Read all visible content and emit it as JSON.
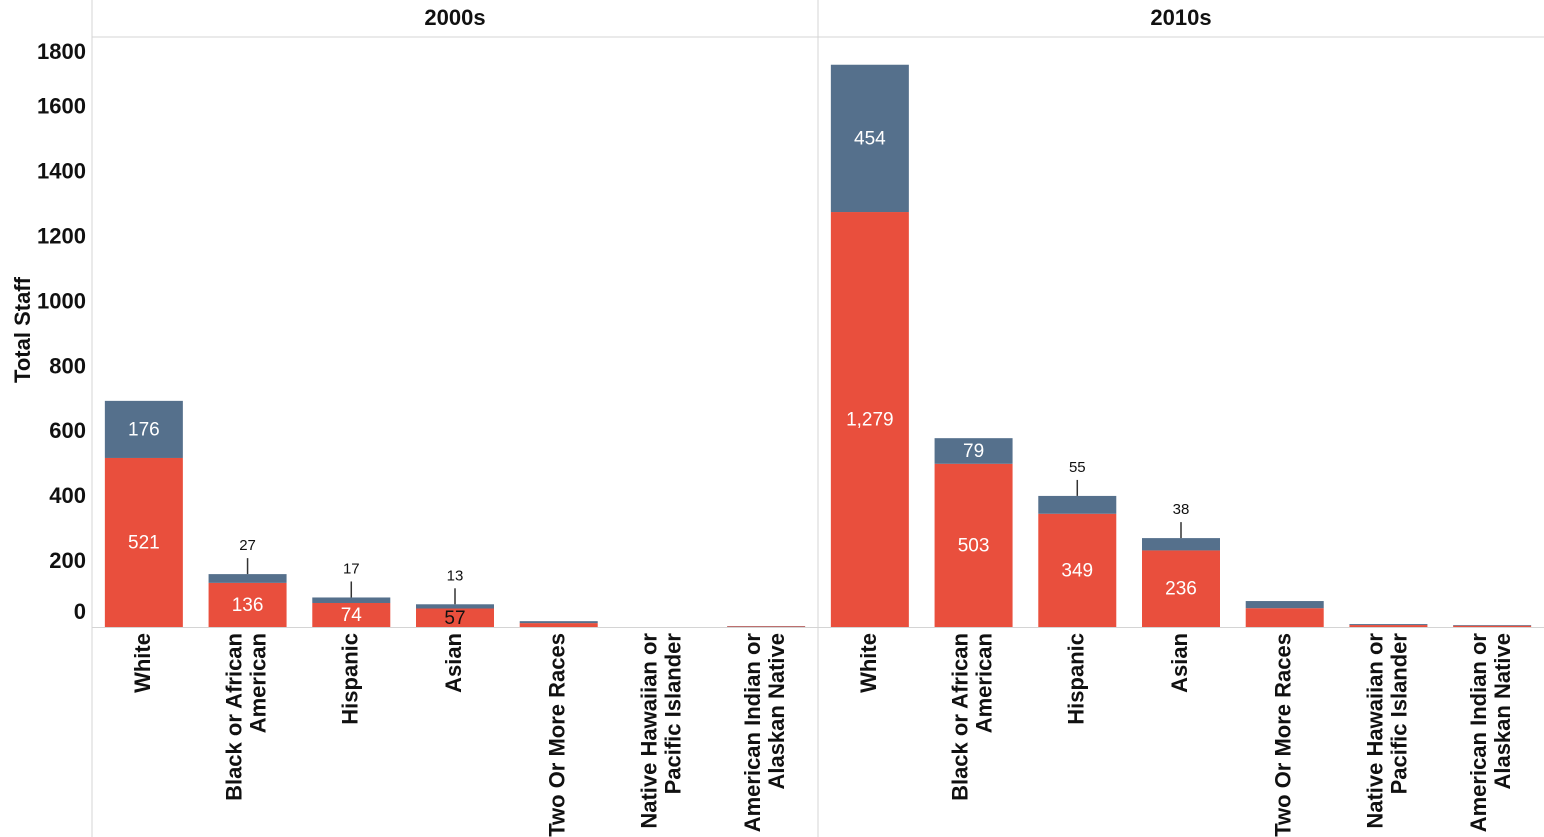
{
  "chart_data": {
    "type": "bar",
    "stacked": true,
    "ylabel": "Total Staff",
    "ylim": [
      0,
      1800
    ],
    "yticks": [
      0,
      200,
      400,
      600,
      800,
      1000,
      1200,
      1400,
      1600,
      1800
    ],
    "categories": [
      "White",
      "Black or African American",
      "Hispanic",
      "Asian",
      "Two Or More Races",
      "Native Hawaiian or Pacific Islander",
      "American Indian or Alaskan Native"
    ],
    "panels": [
      {
        "title": "2000s",
        "series": [
          {
            "color": "#e94f3d",
            "values": [
              521,
              136,
              74,
              57,
              12,
              0,
              2
            ],
            "value_labels": [
              "521",
              "136",
              "74",
              "57",
              null,
              null,
              null
            ]
          },
          {
            "color": "#55708c",
            "values": [
              176,
              27,
              17,
              13,
              6,
              0,
              1
            ],
            "value_labels": [
              "176",
              "27",
              "17",
              "13",
              null,
              null,
              null
            ]
          }
        ]
      },
      {
        "title": "2010s",
        "series": [
          {
            "color": "#e94f3d",
            "values": [
              1279,
              503,
              349,
              236,
              58,
              6,
              4
            ],
            "value_labels": [
              "1,279",
              "503",
              "349",
              "236",
              null,
              null,
              null
            ]
          },
          {
            "color": "#55708c",
            "values": [
              454,
              79,
              55,
              38,
              22,
              3,
              2
            ],
            "value_labels": [
              "454",
              "79",
              "55",
              "38",
              null,
              null,
              null
            ]
          }
        ]
      }
    ]
  }
}
